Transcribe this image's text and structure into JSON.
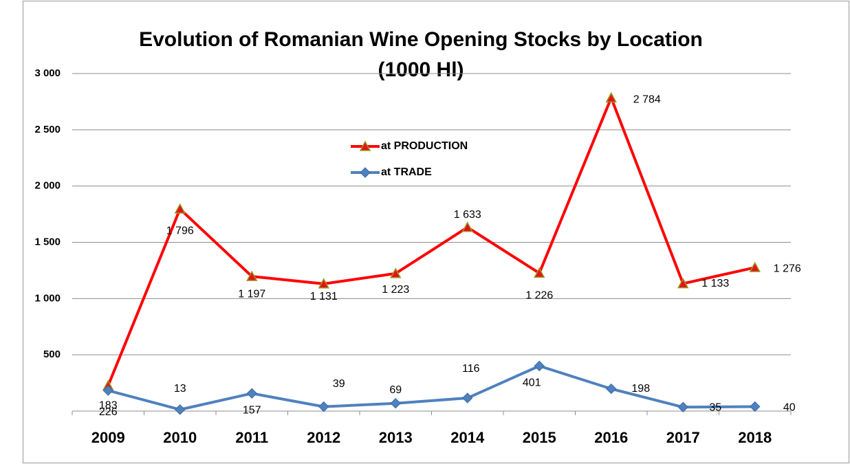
{
  "chart_data": {
    "type": "line",
    "title": "Evolution of Romanian Wine Opening Stocks by Location",
    "subtitle": "(1000 Hl)",
    "categories": [
      "2009",
      "2010",
      "2011",
      "2012",
      "2013",
      "2014",
      "2015",
      "2016",
      "2017",
      "2018"
    ],
    "series": [
      {
        "name": "at PRODUCTION",
        "color": "#ff0000",
        "marker": "triangle",
        "values": [
          226,
          1796,
          1197,
          1131,
          1223,
          1633,
          1226,
          2784,
          1133,
          1276
        ],
        "value_labels": [
          "226",
          "1 796",
          "1 197",
          "1 131",
          "1 223",
          "1 633",
          "1 226",
          "2 784",
          "1 133",
          "1 276"
        ]
      },
      {
        "name": "at TRADE",
        "color": "#4f81bd",
        "marker": "diamond",
        "values": [
          183,
          13,
          157,
          39,
          69,
          116,
          401,
          198,
          35,
          40
        ]
      }
    ],
    "ylim": [
      0,
      3000
    ],
    "yticks": [
      500,
      {
        "value": 1000,
        "label": "1 000"
      },
      {
        "value": 1500,
        "label": "1 500"
      },
      {
        "value": 2000,
        "label": "2 000"
      },
      {
        "value": 2500,
        "label": "2 500"
      },
      {
        "value": 3000,
        "label": "3 000"
      }
    ],
    "grid": true
  }
}
